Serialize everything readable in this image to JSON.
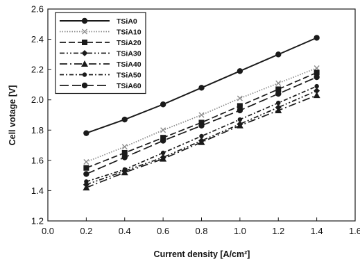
{
  "chart_data": {
    "type": "line",
    "xlabel": "Current density [A/cm²]",
    "ylabel": "Cell votage [V]",
    "xlim": [
      0.0,
      1.6
    ],
    "ylim": [
      1.2,
      2.6
    ],
    "xticks": [
      "0.0",
      "0.2",
      "0.4",
      "0.6",
      "0.8",
      "1.0",
      "1.2",
      "1.4",
      "1.6"
    ],
    "yticks": [
      "1.2",
      "1.4",
      "1.6",
      "1.8",
      "2.0",
      "2.2",
      "2.4",
      "2.6"
    ],
    "grid": false,
    "legend_position": "top-left",
    "x": [
      0.2,
      0.4,
      0.6,
      0.8,
      1.0,
      1.2,
      1.4
    ],
    "series": [
      {
        "name": "TSiA0",
        "values": [
          1.78,
          1.87,
          1.97,
          2.08,
          2.19,
          2.3,
          2.41
        ],
        "marker": "circle",
        "dash": "solid"
      },
      {
        "name": "TSiA10",
        "values": [
          1.59,
          1.69,
          1.8,
          1.9,
          2.01,
          2.11,
          2.21
        ],
        "marker": "x",
        "dash": "dotted"
      },
      {
        "name": "TSiA20",
        "values": [
          1.55,
          1.65,
          1.75,
          1.85,
          1.96,
          2.07,
          2.18
        ],
        "marker": "square",
        "dash": "dashed"
      },
      {
        "name": "TSiA30",
        "values": [
          1.44,
          1.53,
          1.62,
          1.73,
          1.84,
          1.95,
          2.06
        ],
        "marker": "diamond",
        "dash": "dashdotdot"
      },
      {
        "name": "TSiA40",
        "values": [
          1.42,
          1.52,
          1.61,
          1.72,
          1.83,
          1.93,
          2.03
        ],
        "marker": "triangle",
        "dash": "longdashdot"
      },
      {
        "name": "TSiA50",
        "values": [
          1.46,
          1.54,
          1.65,
          1.76,
          1.87,
          1.98,
          2.09
        ],
        "marker": "circle-small",
        "dash": "dashdot"
      },
      {
        "name": "TSiA60",
        "values": [
          1.51,
          1.62,
          1.73,
          1.83,
          1.93,
          2.04,
          2.15
        ],
        "marker": "circle",
        "dash": "longdash"
      }
    ],
    "colors": {
      "line": "#1a1a1a",
      "light": "#8a8a8a",
      "background": "#ffffff"
    }
  }
}
